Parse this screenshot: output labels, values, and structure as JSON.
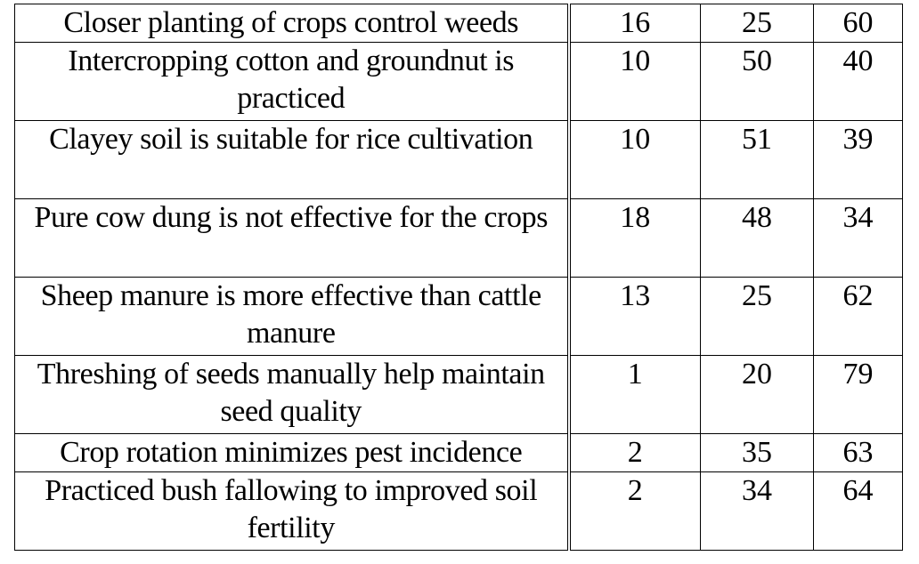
{
  "rows": [
    {
      "practice": "Closer planting of crops control weeds",
      "v1": "16",
      "v2": "25",
      "v3": "60"
    },
    {
      "practice": "Intercropping cotton and groundnut is practiced",
      "v1": "10",
      "v2": "50",
      "v3": "40"
    },
    {
      "practice": "Clayey soil is suitable for rice cultivation",
      "v1": "10",
      "v2": "51",
      "v3": "39"
    },
    {
      "practice": "Pure cow dung is not effective for the crops",
      "v1": "18",
      "v2": "48",
      "v3": "34"
    },
    {
      "practice": "Sheep manure is more effective than cattle manure",
      "v1": "13",
      "v2": "25",
      "v3": "62"
    },
    {
      "practice": "Threshing of seeds manually help maintain seed quality",
      "v1": "1",
      "v2": "20",
      "v3": "79"
    },
    {
      "practice": "Crop rotation minimizes pest incidence",
      "v1": "2",
      "v2": "35",
      "v3": "63"
    },
    {
      "practice": "Practiced bush fallowing to improved soil fertility",
      "v1": "2",
      "v2": "34",
      "v3": "64"
    }
  ]
}
